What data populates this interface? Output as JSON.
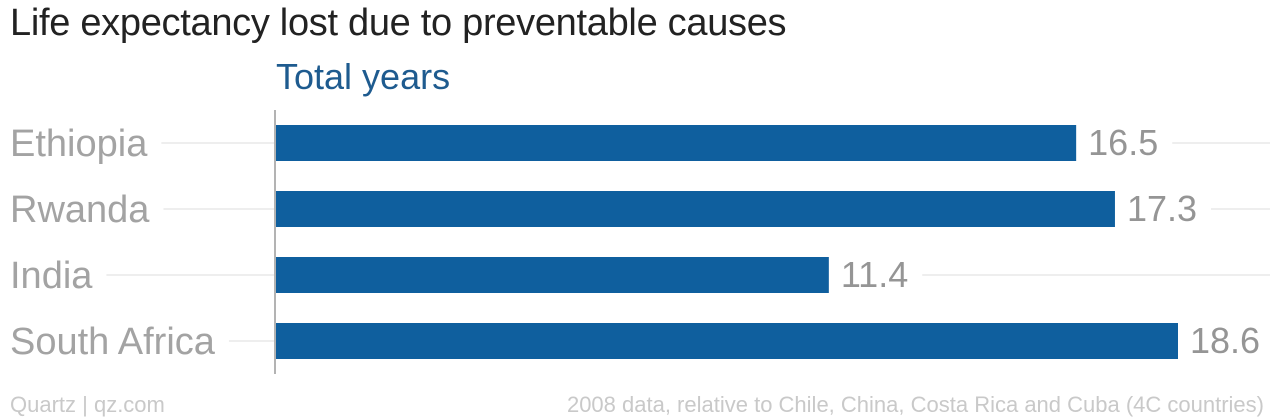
{
  "chart_data": {
    "type": "bar",
    "orientation": "horizontal",
    "title": "Life expectancy lost due to preventable causes",
    "series": [
      {
        "name": "Total years",
        "values": [
          16.5,
          17.3,
          11.4,
          18.6
        ]
      }
    ],
    "categories": [
      "Ethiopia",
      "Rwanda",
      "India",
      "South Africa"
    ],
    "value_labels": [
      "16.5",
      "17.3",
      "11.4",
      "18.6"
    ],
    "xlim": [
      0,
      18.6
    ],
    "grid": true,
    "legend": "none",
    "colors": {
      "bar": "#0f5f9e",
      "series_label": "#1e5b8f",
      "category_text": "#a3a3a3",
      "value_text": "#959595",
      "gridline": "#eeeeee",
      "axis": "#9a9a9a"
    }
  },
  "footer": {
    "source": "Quartz | qz.com",
    "note": "2008 data, relative to Chile, China, Costa Rica and Cuba (4C countries)"
  }
}
